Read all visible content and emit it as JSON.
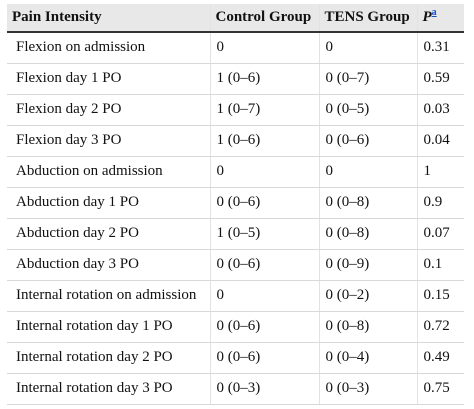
{
  "table": {
    "headers": {
      "col1": "Pain Intensity",
      "col2": "Control Group",
      "col3": "TENS Group",
      "col4_main": "P",
      "col4_sup": "a"
    },
    "rows": [
      {
        "label": "Flexion on admission",
        "control": "0",
        "tens": "0",
        "p": "0.31"
      },
      {
        "label": "Flexion day 1 PO",
        "control": "1 (0–6)",
        "tens": "0 (0–7)",
        "p": "0.59"
      },
      {
        "label": "Flexion day 2 PO",
        "control": "1 (0–7)",
        "tens": "0 (0–5)",
        "p": "0.03"
      },
      {
        "label": "Flexion day 3 PO",
        "control": "1 (0–6)",
        "tens": "0 (0–6)",
        "p": "0.04"
      },
      {
        "label": "Abduction on admission",
        "control": "0",
        "tens": "0",
        "p": "1"
      },
      {
        "label": "Abduction day 1 PO",
        "control": "0 (0–6)",
        "tens": "0 (0–8)",
        "p": "0.9"
      },
      {
        "label": "Abduction day 2 PO",
        "control": "1 (0–5)",
        "tens": "0 (0–8)",
        "p": "0.07"
      },
      {
        "label": "Abduction day 3 PO",
        "control": "0 (0–6)",
        "tens": "0 (0–9)",
        "p": "0.1"
      },
      {
        "label": "Internal rotation on admission",
        "control": "0",
        "tens": "0 (0–2)",
        "p": "0.15"
      },
      {
        "label": "Internal rotation day 1 PO",
        "control": "0 (0–6)",
        "tens": "0 (0–8)",
        "p": "0.72"
      },
      {
        "label": "Internal rotation day 2 PO",
        "control": "0 (0–6)",
        "tens": "0 (0–4)",
        "p": "0.49"
      },
      {
        "label": "Internal rotation day 3 PO",
        "control": "0 (0–3)",
        "tens": "0 (0–3)",
        "p": "0.75"
      }
    ]
  }
}
